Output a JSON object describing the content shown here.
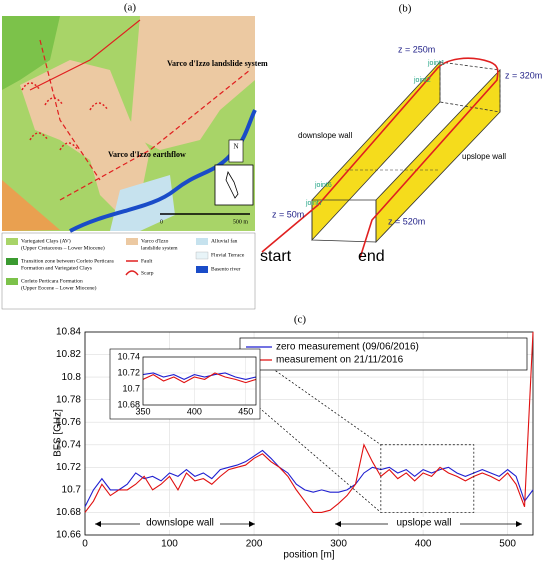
{
  "map": {
    "label": "(a)",
    "system_label": "Varco d'Izzo landslide system",
    "earthflow_label": "Varco d'Izzo earthflow",
    "north": "N",
    "scale_start": "0",
    "scale_end": "500 m",
    "legend": [
      {
        "text": "Variegated Clays (AV)",
        "sub": "(Upper Cretaceous – Lower Miocene)"
      },
      {
        "text": "Transition zone between Corleto Perticara",
        "sub": "Formation and Variegated Clays"
      },
      {
        "text": "Corleto Perticara Formation",
        "sub": "(Upper Eocene – Lower Miocene)"
      },
      {
        "text": "Varco d'Izzo",
        "sub": "landslide system"
      },
      {
        "text": "Fault"
      },
      {
        "text": "Scarp"
      },
      {
        "text": "Alluvial fan"
      },
      {
        "text": "Fluvial Terrace"
      },
      {
        "text": "Basento river"
      }
    ]
  },
  "diagram": {
    "label": "(b)",
    "z_top_left": "z = 250m",
    "z_top_right": "z = 320m",
    "joint1": "joint1",
    "joint2": "joint2",
    "downslope": "downslope wall",
    "upslope": "upslope wall",
    "joint6": "joint6",
    "joint7": "joint7",
    "z_start": "z = 50m",
    "z_end": "z = 520m",
    "start": "start",
    "end": "end"
  },
  "chart_data": {
    "type": "line",
    "label": "(c)",
    "y_label": "BFS [GHz]",
    "x_label": "position  [m]",
    "x": [
      0,
      10,
      20,
      30,
      40,
      50,
      60,
      70,
      80,
      90,
      100,
      110,
      120,
      130,
      140,
      150,
      160,
      170,
      180,
      190,
      200,
      210,
      220,
      230,
      240,
      250,
      260,
      270,
      280,
      290,
      300,
      310,
      320,
      330,
      340,
      350,
      360,
      370,
      380,
      390,
      400,
      410,
      420,
      430,
      440,
      450,
      460,
      470,
      480,
      490,
      500,
      510,
      520,
      530
    ],
    "series": [
      {
        "name": "zero measurement (09/06/2016)",
        "color": "#1f1fd0",
        "values": [
          10.685,
          10.7,
          10.71,
          10.7,
          10.7,
          10.705,
          10.715,
          10.71,
          10.712,
          10.708,
          10.715,
          10.712,
          10.718,
          10.712,
          10.715,
          10.71,
          10.718,
          10.72,
          10.722,
          10.725,
          10.73,
          10.735,
          10.728,
          10.72,
          10.715,
          10.705,
          10.7,
          10.698,
          10.7,
          10.698,
          10.698,
          10.7,
          10.705,
          10.715,
          10.72,
          10.718,
          10.72,
          10.715,
          10.718,
          10.712,
          10.718,
          10.715,
          10.718,
          10.72,
          10.715,
          10.712,
          10.715,
          10.718,
          10.715,
          10.712,
          10.718,
          10.712,
          10.69,
          10.7
        ]
      },
      {
        "name": "measurement on 21/11/2016",
        "color": "#e01010",
        "values": [
          10.68,
          10.69,
          10.705,
          10.695,
          10.7,
          10.7,
          10.705,
          10.712,
          10.7,
          10.705,
          10.712,
          10.7,
          10.715,
          10.708,
          10.71,
          10.705,
          10.712,
          10.718,
          10.72,
          10.722,
          10.728,
          10.732,
          10.725,
          10.72,
          10.712,
          10.7,
          10.69,
          10.68,
          10.68,
          10.682,
          10.688,
          10.695,
          10.705,
          10.74,
          10.725,
          10.712,
          10.718,
          10.71,
          10.715,
          10.708,
          10.715,
          10.712,
          10.72,
          10.715,
          10.712,
          10.708,
          10.712,
          10.715,
          10.712,
          10.708,
          10.715,
          10.705,
          10.685,
          10.84
        ]
      }
    ],
    "xlim": [
      0,
      530
    ],
    "ylim": [
      10.66,
      10.84
    ],
    "xticks": [
      0,
      100,
      200,
      300,
      400,
      500
    ],
    "yticks": [
      10.66,
      10.68,
      10.7,
      10.72,
      10.74,
      10.76,
      10.78,
      10.8,
      10.82,
      10.84
    ],
    "grid": true,
    "inset": {
      "xlim": [
        350,
        460
      ],
      "ylim": [
        10.68,
        10.74
      ],
      "xticks": [
        350,
        400,
        450
      ],
      "yticks": [
        10.68,
        10.7,
        10.72,
        10.74
      ]
    },
    "annotations": [
      "downslope wall",
      "upslope wall"
    ]
  }
}
